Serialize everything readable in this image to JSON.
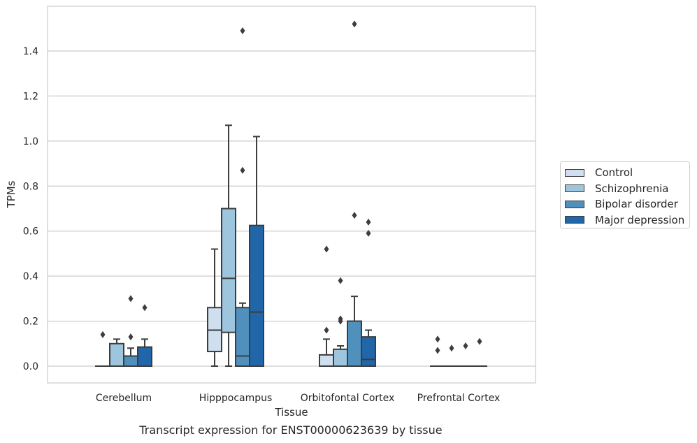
{
  "chart_data": {
    "type": "box",
    "title": "",
    "caption": "Transcript expression for ENST00000623639 by tissue",
    "xlabel": "Tissue",
    "ylabel": "TPMs",
    "ylim": [
      -0.075,
      1.6
    ],
    "yticks": [
      "0.0",
      "0.2",
      "0.4",
      "0.6",
      "0.8",
      "1.0",
      "1.2",
      "1.4"
    ],
    "ytick_values": [
      0,
      0.2,
      0.4,
      0.6,
      0.8,
      1.0,
      1.2,
      1.4
    ],
    "grid": true,
    "legend_position": "right",
    "categories": [
      "Cerebellum",
      "Hipppocampus",
      "Orbitofontal Cortex",
      "Prefrontal Cortex"
    ],
    "series": [
      {
        "name": "Control",
        "color": "#cfdfef",
        "boxes": [
          {
            "q1": 0,
            "median": 0,
            "q3": 0,
            "whisker_low": 0,
            "whisker_high": 0,
            "outliers": [
              0.14
            ]
          },
          {
            "q1": 0.065,
            "median": 0.16,
            "q3": 0.26,
            "whisker_low": 0,
            "whisker_high": 0.52,
            "outliers": []
          },
          {
            "q1": 0,
            "median": 0,
            "q3": 0.05,
            "whisker_low": 0,
            "whisker_high": 0.12,
            "outliers": [
              0.16,
              0.52
            ]
          },
          {
            "q1": 0,
            "median": 0,
            "q3": 0,
            "whisker_low": 0,
            "whisker_high": 0,
            "outliers": [
              0.07,
              0.12
            ]
          }
        ]
      },
      {
        "name": "Schizophrenia",
        "color": "#9dc5dd",
        "boxes": [
          {
            "q1": 0,
            "median": 0,
            "q3": 0.1,
            "whisker_low": 0,
            "whisker_high": 0.12,
            "outliers": []
          },
          {
            "q1": 0.15,
            "median": 0.39,
            "q3": 0.7,
            "whisker_low": 0,
            "whisker_high": 1.07,
            "outliers": []
          },
          {
            "q1": 0,
            "median": 0,
            "q3": 0.075,
            "whisker_low": 0,
            "whisker_high": 0.09,
            "outliers": [
              0.2,
              0.21,
              0.38
            ]
          },
          {
            "q1": 0,
            "median": 0,
            "q3": 0,
            "whisker_low": 0,
            "whisker_high": 0,
            "outliers": [
              0.08
            ]
          }
        ]
      },
      {
        "name": "Bipolar disorder",
        "color": "#5090bd",
        "boxes": [
          {
            "q1": 0,
            "median": 0,
            "q3": 0.045,
            "whisker_low": 0,
            "whisker_high": 0.08,
            "outliers": [
              0.13,
              0.3
            ]
          },
          {
            "q1": 0,
            "median": 0.045,
            "q3": 0.26,
            "whisker_low": 0,
            "whisker_high": 0.28,
            "outliers": [
              0.87,
              1.49
            ]
          },
          {
            "q1": 0,
            "median": 0,
            "q3": 0.2,
            "whisker_low": 0,
            "whisker_high": 0.31,
            "outliers": [
              0.67,
              1.52
            ]
          },
          {
            "q1": 0,
            "median": 0,
            "q3": 0,
            "whisker_low": 0,
            "whisker_high": 0,
            "outliers": [
              0.09
            ]
          }
        ]
      },
      {
        "name": "Major depression",
        "color": "#2166a8",
        "boxes": [
          {
            "q1": 0,
            "median": 0,
            "q3": 0.085,
            "whisker_low": 0,
            "whisker_high": 0.12,
            "outliers": [
              0.26
            ]
          },
          {
            "q1": 0,
            "median": 0.24,
            "q3": 0.625,
            "whisker_low": 0,
            "whisker_high": 1.02,
            "outliers": []
          },
          {
            "q1": 0,
            "median": 0.03,
            "q3": 0.13,
            "whisker_low": 0,
            "whisker_high": 0.16,
            "outliers": [
              0.59,
              0.64
            ]
          },
          {
            "q1": 0,
            "median": 0,
            "q3": 0,
            "whisker_low": 0,
            "whisker_high": 0,
            "outliers": [
              0.11
            ]
          }
        ]
      }
    ]
  },
  "legend": {
    "items": [
      {
        "label": "Control",
        "color": "#cfdfef"
      },
      {
        "label": "Schizophrenia",
        "color": "#9dc5dd"
      },
      {
        "label": "Bipolar disorder",
        "color": "#5090bd"
      },
      {
        "label": "Major depression",
        "color": "#2166a8"
      }
    ]
  }
}
